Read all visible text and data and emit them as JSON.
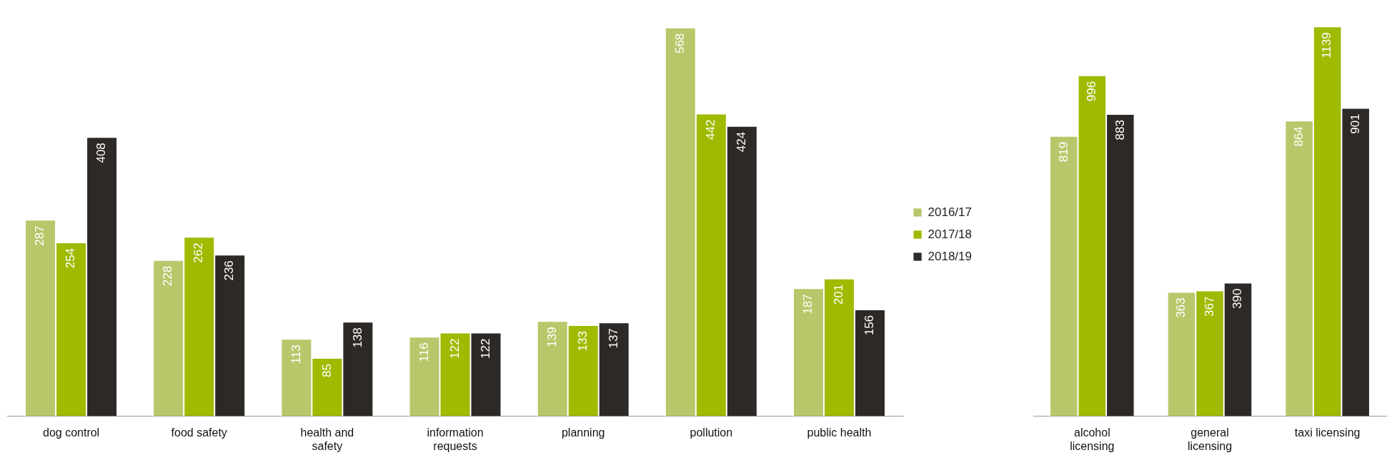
{
  "chart_data": [
    {
      "type": "bar",
      "categories": [
        "dog control",
        "food safety",
        "health and safety",
        "information requests",
        "planning",
        "pollution",
        "public health"
      ],
      "series": [
        {
          "name": "2016/17",
          "color": "#b8c76a",
          "values": [
            287,
            228,
            113,
            116,
            139,
            568,
            187
          ]
        },
        {
          "name": "2017/18",
          "color": "#9fba00",
          "values": [
            254,
            262,
            85,
            122,
            133,
            442,
            201
          ]
        },
        {
          "name": "2018/19",
          "color": "#2d2926",
          "values": [
            408,
            236,
            138,
            122,
            137,
            424,
            156
          ]
        }
      ],
      "data_labels": true,
      "legend": "right",
      "grid": false
    },
    {
      "type": "bar",
      "categories": [
        "alcohol licensing",
        "general licensing",
        "taxi licensing"
      ],
      "series": [
        {
          "color": "#b8c76a",
          "values": [
            819,
            363,
            864
          ]
        },
        {
          "color": "#9fba00",
          "values": [
            996,
            367,
            1139
          ]
        },
        {
          "color": "#2d2926",
          "values": [
            883,
            390,
            901
          ]
        }
      ],
      "data_labels": true,
      "legend": false,
      "grid": false
    }
  ]
}
